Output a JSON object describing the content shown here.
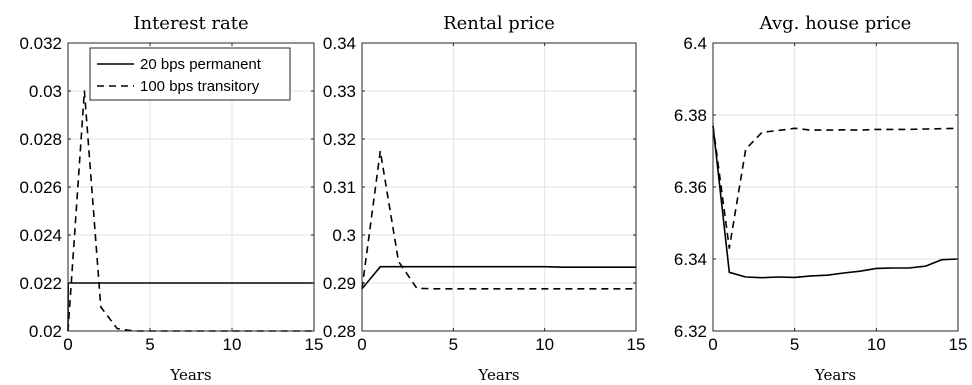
{
  "chart_data": [
    {
      "type": "line",
      "title": "Interest rate",
      "xlabel": "Years",
      "ylabel": "",
      "xlim": [
        0,
        15
      ],
      "ylim": [
        0.02,
        0.032
      ],
      "xticks": [
        0,
        5,
        10,
        15
      ],
      "xtick_labels": [
        "0",
        "5",
        "10",
        "15"
      ],
      "yticks": [
        0.02,
        0.022,
        0.024,
        0.026,
        0.028,
        0.03,
        0.032
      ],
      "ytick_labels": [
        "0.02",
        "0.022",
        "0.024",
        "0.026",
        "0.028",
        "0.03",
        "0.032"
      ],
      "grid": true,
      "legend": {
        "placement": "top-right",
        "entries": [
          "20 bps permanent",
          "100 bps transitory"
        ]
      },
      "series": [
        {
          "name": "20 bps permanent",
          "style": "solid",
          "x": [
            0,
            0.01,
            1,
            2,
            3,
            4,
            5,
            6,
            7,
            8,
            9,
            10,
            11,
            12,
            13,
            14,
            15
          ],
          "values": [
            0.02,
            0.022,
            0.022,
            0.022,
            0.022,
            0.022,
            0.022,
            0.022,
            0.022,
            0.022,
            0.022,
            0.022,
            0.022,
            0.022,
            0.022,
            0.022,
            0.022
          ]
        },
        {
          "name": "100 bps transitory",
          "style": "dashed",
          "x": [
            0,
            1,
            2,
            3,
            4,
            5,
            6,
            7,
            8,
            9,
            10,
            11,
            12,
            13,
            14,
            15
          ],
          "values": [
            0.02,
            0.03,
            0.021,
            0.0201,
            0.02,
            0.02,
            0.02,
            0.02,
            0.02,
            0.02,
            0.02,
            0.02,
            0.02,
            0.02,
            0.02,
            0.02
          ]
        }
      ]
    },
    {
      "type": "line",
      "title": "Rental price",
      "xlabel": "Years",
      "ylabel": "",
      "xlim": [
        0,
        15
      ],
      "ylim": [
        0.28,
        0.34
      ],
      "xticks": [
        0,
        5,
        10,
        15
      ],
      "xtick_labels": [
        "0",
        "5",
        "10",
        "15"
      ],
      "yticks": [
        0.28,
        0.29,
        0.3,
        0.31,
        0.32,
        0.33,
        0.34
      ],
      "ytick_labels": [
        "0.28",
        "0.29",
        "0.3",
        "0.31",
        "0.32",
        "0.33",
        "0.34"
      ],
      "grid": true,
      "series": [
        {
          "name": "20 bps permanent",
          "style": "solid",
          "x": [
            0,
            1,
            2,
            3,
            4,
            5,
            6,
            7,
            8,
            9,
            10,
            11,
            12,
            13,
            14,
            15
          ],
          "values": [
            0.2888,
            0.2934,
            0.2934,
            0.2934,
            0.2934,
            0.2934,
            0.2934,
            0.2934,
            0.2934,
            0.2934,
            0.2934,
            0.2933,
            0.2933,
            0.2933,
            0.2933,
            0.2933
          ]
        },
        {
          "name": "100 bps transitory",
          "style": "dashed",
          "x": [
            0,
            1,
            2,
            3,
            4,
            5,
            6,
            7,
            8,
            9,
            10,
            11,
            12,
            13,
            14,
            15
          ],
          "values": [
            0.2888,
            0.3175,
            0.2945,
            0.2889,
            0.2888,
            0.2888,
            0.2888,
            0.2888,
            0.2888,
            0.2888,
            0.2888,
            0.2888,
            0.2888,
            0.2888,
            0.2888,
            0.2888
          ]
        }
      ]
    },
    {
      "type": "line",
      "title": "Avg. house price",
      "xlabel": "Years",
      "ylabel": "",
      "xlim": [
        0,
        15
      ],
      "ylim": [
        6.32,
        6.4
      ],
      "xticks": [
        0,
        5,
        10,
        15
      ],
      "xtick_labels": [
        "0",
        "5",
        "10",
        "15"
      ],
      "yticks": [
        6.32,
        6.34,
        6.36,
        6.38,
        6.4
      ],
      "ytick_labels": [
        "6.32",
        "6.34",
        "6.36",
        "6.38",
        "6.4"
      ],
      "grid": true,
      "series": [
        {
          "name": "20 bps permanent",
          "style": "solid",
          "x": [
            0,
            1,
            2,
            3,
            4,
            5,
            6,
            7,
            8,
            9,
            10,
            11,
            12,
            13,
            14,
            15
          ],
          "values": [
            6.377,
            6.3363,
            6.335,
            6.3348,
            6.335,
            6.3349,
            6.3353,
            6.3355,
            6.3361,
            6.3366,
            6.3374,
            6.3375,
            6.3375,
            6.338,
            6.3398,
            6.34
          ]
        },
        {
          "name": "100 bps transitory",
          "style": "dashed",
          "x": [
            0,
            1,
            2,
            3,
            4,
            5,
            6,
            7,
            8,
            9,
            10,
            11,
            12,
            13,
            14,
            15
          ],
          "values": [
            6.377,
            6.343,
            6.3705,
            6.3752,
            6.3757,
            6.3763,
            6.3758,
            6.3758,
            6.3759,
            6.3758,
            6.376,
            6.376,
            6.376,
            6.3761,
            6.3762,
            6.3763
          ]
        }
      ]
    }
  ]
}
